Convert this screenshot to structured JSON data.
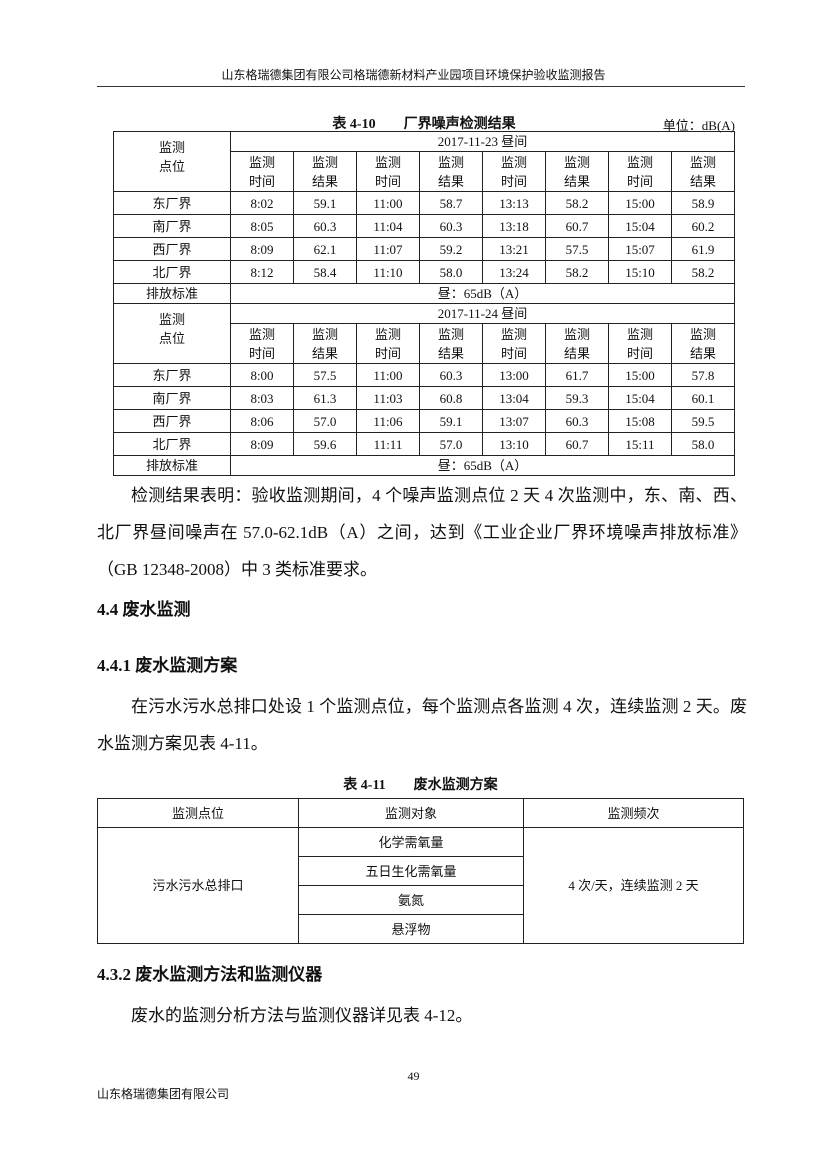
{
  "header": "山东格瑞德集团有限公司格瑞德新材料产业园项目环境保护验收监测报告",
  "table410": {
    "title": "表 4-10　　厂界噪声检测结果",
    "unit": "单位：dB(A)",
    "point_label": "监测\n点位",
    "sub_headers": [
      "监测\n时间",
      "监测\n结果",
      "监测\n时间",
      "监测\n结果",
      "监测\n时间",
      "监测\n结果",
      "监测\n时间",
      "监测\n结果"
    ],
    "standard_label": "排放标准",
    "standard_value": "昼：65dB（A）",
    "days": [
      {
        "date": "2017-11-23 昼间",
        "rows": [
          [
            "东厂界",
            "8:02",
            "59.1",
            "11:00",
            "58.7",
            "13:13",
            "58.2",
            "15:00",
            "58.9"
          ],
          [
            "南厂界",
            "8:05",
            "60.3",
            "11:04",
            "60.3",
            "13:18",
            "60.7",
            "15:04",
            "60.2"
          ],
          [
            "西厂界",
            "8:09",
            "62.1",
            "11:07",
            "59.2",
            "13:21",
            "57.5",
            "15:07",
            "61.9"
          ],
          [
            "北厂界",
            "8:12",
            "58.4",
            "11:10",
            "58.0",
            "13:24",
            "58.2",
            "15:10",
            "58.2"
          ]
        ]
      },
      {
        "date": "2017-11-24 昼间",
        "rows": [
          [
            "东厂界",
            "8:00",
            "57.5",
            "11:00",
            "60.3",
            "13:00",
            "61.7",
            "15:00",
            "57.8"
          ],
          [
            "南厂界",
            "8:03",
            "61.3",
            "11:03",
            "60.8",
            "13:04",
            "59.3",
            "15:04",
            "60.1"
          ],
          [
            "西厂界",
            "8:06",
            "57.0",
            "11:06",
            "59.1",
            "13:07",
            "60.3",
            "15:08",
            "59.5"
          ],
          [
            "北厂界",
            "8:09",
            "59.6",
            "11:11",
            "57.0",
            "13:10",
            "60.7",
            "15:11",
            "58.0"
          ]
        ]
      }
    ]
  },
  "para1": "检测结果表明：验收监测期间，4 个噪声监测点位 2 天 4 次监测中，东、南、西、北厂界昼间噪声在 57.0-62.1dB（A）之间，达到《工业企业厂界环境噪声排放标准》（GB 12348-2008）中 3 类标准要求。",
  "h44": "4.4  废水监测",
  "h441": "4.4.1  废水监测方案",
  "para2": "在污水污水总排口处设 1 个监测点位，每个监测点各监测 4 次，连续监测 2 天。废水监测方案见表 4-11。",
  "table411": {
    "title": "表 4-11　　废水监测方案",
    "headers": [
      "监测点位",
      "监测对象",
      "监测频次"
    ],
    "point": "污水污水总排口",
    "objects": [
      "化学需氧量",
      "五日生化需氧量",
      "氨氮",
      "悬浮物"
    ],
    "frequency": "4 次/天，连续监测 2 天"
  },
  "h432": "4.3.2  废水监测方法和监测仪器",
  "para3": "废水的监测分析方法与监测仪器详见表 4-12。",
  "page_number": "49",
  "footer": "山东格瑞德集团有限公司"
}
